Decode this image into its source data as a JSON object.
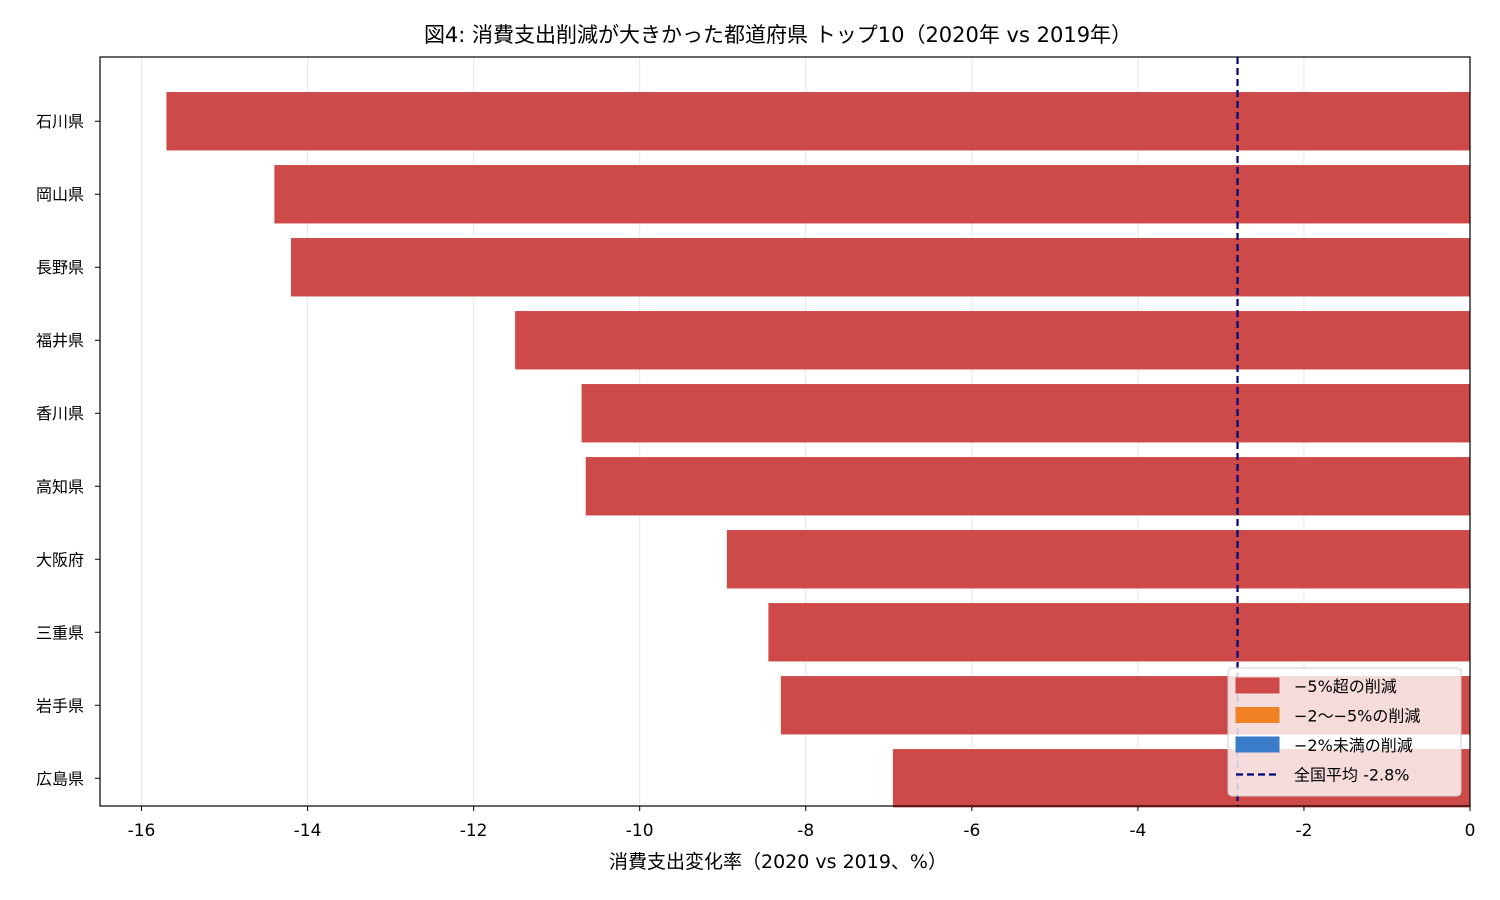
{
  "chart_data": {
    "type": "bar",
    "orientation": "horizontal",
    "title": "図4: 消費支出削減が大きかった都道府県 トップ10（2020年 vs 2019年）",
    "xlabel": "消費支出変化率（2020 vs 2019、%）",
    "ylabel": "",
    "xlim": [
      -16.5,
      0
    ],
    "xticks": [
      -16,
      -14,
      -12,
      -10,
      -8,
      -6,
      -4,
      -2,
      0
    ],
    "grid": "vertical",
    "categories": [
      "石川県",
      "岡山県",
      "長野県",
      "福井県",
      "香川県",
      "高知県",
      "大阪府",
      "三重県",
      "岩手県",
      "広島県"
    ],
    "values": [
      -15.7,
      -14.4,
      -14.2,
      -11.5,
      -10.7,
      -10.65,
      -8.95,
      -8.45,
      -8.3,
      -6.95
    ],
    "bar_color": "#cd4a48",
    "reference_line": {
      "value": -2.8,
      "label": "全国平均 -2.8%",
      "color": "#00007a",
      "style": "dashed"
    },
    "legend": {
      "placement": "bottom-right",
      "entries": [
        {
          "label": "−5%超の削減",
          "color": "#cd4a48",
          "kind": "patch"
        },
        {
          "label": "−2〜−5%の削減",
          "color": "#f08224",
          "kind": "patch"
        },
        {
          "label": "−2%未満の削減",
          "color": "#3b7cc9",
          "kind": "patch"
        },
        {
          "label": "全国平均 -2.8%",
          "color": "#00007a",
          "kind": "dashed-line"
        }
      ]
    }
  }
}
